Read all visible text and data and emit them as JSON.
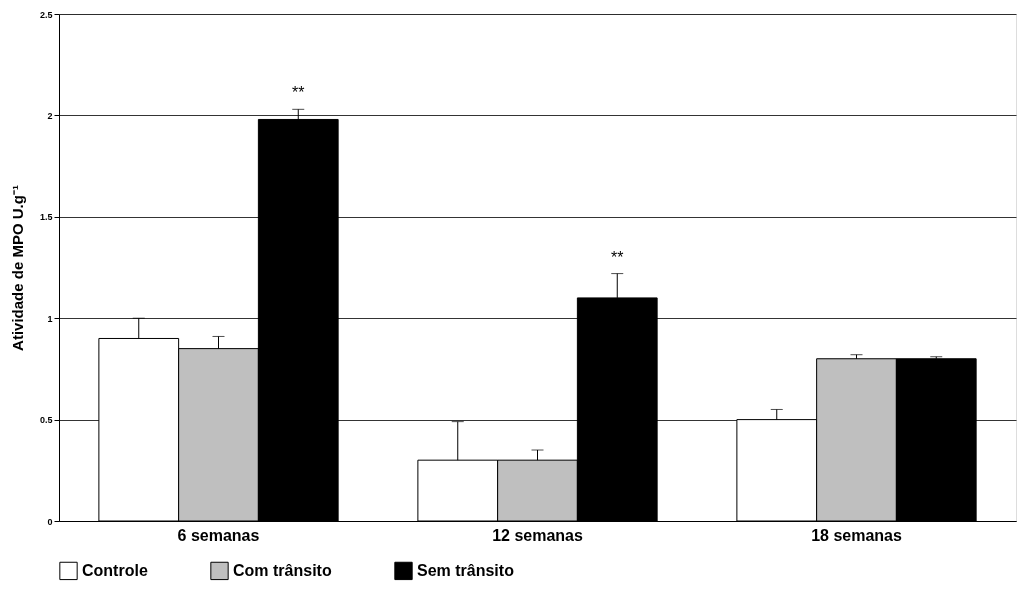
{
  "chart_data": {
    "type": "bar",
    "ylabel": "Atividade de MPO U.g⁻¹",
    "categories": [
      "6 semanas",
      "12 semanas",
      "18 semanas"
    ],
    "series": [
      {
        "name": "Controle",
        "color": "#ffffff",
        "values": [
          0.9,
          0.3,
          0.5
        ],
        "errors": [
          [
            0.9,
            1.0
          ],
          [
            0.3,
            0.49
          ],
          [
            0.5,
            0.55
          ]
        ]
      },
      {
        "name": "Com trânsito",
        "color": "#bfbfbf",
        "values": [
          0.85,
          0.3,
          0.8
        ],
        "errors": [
          [
            0.85,
            0.91
          ],
          [
            0.3,
            0.35
          ],
          [
            0.8,
            0.82
          ]
        ]
      },
      {
        "name": "Sem trânsito",
        "color": "#000000",
        "values": [
          1.98,
          1.1,
          0.8
        ],
        "errors": [
          [
            1.98,
            2.03
          ],
          [
            1.1,
            1.22
          ],
          [
            0.8,
            0.81
          ]
        ]
      }
    ],
    "ylim": [
      0,
      2.5
    ],
    "yticks": [
      0,
      0.5,
      1,
      1.5,
      2,
      2.5
    ],
    "grid": "y",
    "legend": "bottom",
    "annotations": [
      "**",
      "**"
    ]
  }
}
